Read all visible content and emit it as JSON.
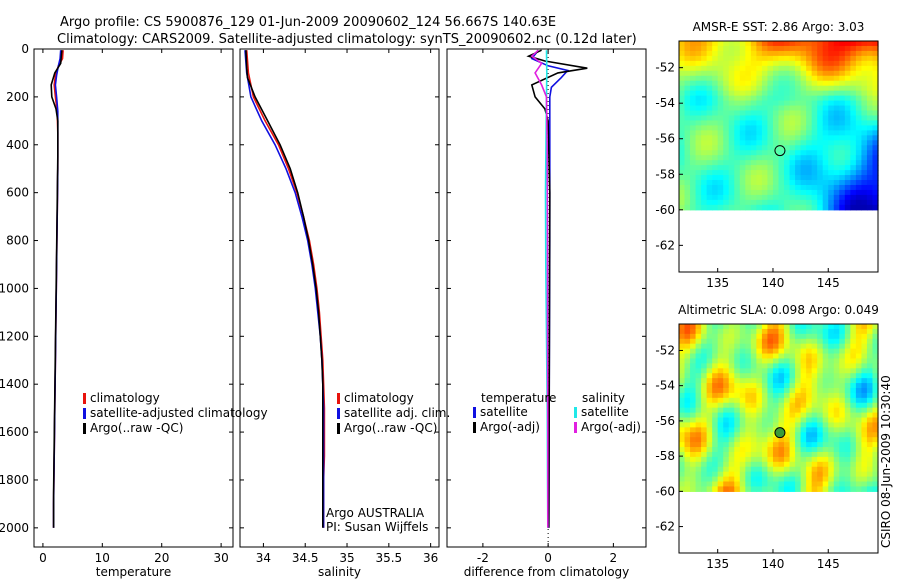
{
  "title_line1": "Argo profile: CS 5900876_129 01-Jun-2009 20090602_124 56.667S 140.63E",
  "title_line2": "Climatology: CARS2009. Satellite-adjusted climatology: synTS_20090602.nc (0.12d later)",
  "footer_stamp": "CSIRO 08-Jun-2009 10:30:40",
  "colors": {
    "climatology": "#e8120c",
    "satellite": "#1010e0",
    "argo": "#000000",
    "sat_salinity": "#20e8e8",
    "argo_adj_salinity": "#e020e0"
  },
  "chart_data": [
    {
      "type": "line",
      "name": "temperature-panel",
      "xlabel": "temperature",
      "xlim": [
        -1.5,
        32
      ],
      "xticks": [
        0,
        10,
        20,
        30
      ],
      "ylim": [
        2080,
        0
      ],
      "yticks": [
        0,
        200,
        400,
        600,
        800,
        1000,
        1200,
        1400,
        1600,
        1800,
        2000
      ],
      "legend": [
        "climatology",
        "satellite-adjusted climatology",
        "Argo(..raw -QC)"
      ],
      "series": [
        {
          "name": "climatology",
          "color_key": "climatology",
          "points": [
            [
              3.4,
              5
            ],
            [
              3.3,
              40
            ],
            [
              2.6,
              70
            ],
            [
              2.1,
              110
            ],
            [
              1.9,
              150
            ],
            [
              2.1,
              200
            ],
            [
              2.4,
              260
            ],
            [
              2.5,
              350
            ],
            [
              2.5,
              500
            ],
            [
              2.4,
              700
            ],
            [
              2.3,
              900
            ],
            [
              2.2,
              1100
            ],
            [
              2.1,
              1300
            ],
            [
              2.0,
              1500
            ],
            [
              1.9,
              1700
            ],
            [
              1.8,
              1900
            ],
            [
              1.8,
              2000
            ]
          ]
        },
        {
          "name": "satellite-adjusted climatology",
          "color_key": "satellite",
          "points": [
            [
              3.0,
              5
            ],
            [
              2.9,
              40
            ],
            [
              2.6,
              70
            ],
            [
              2.3,
              110
            ],
            [
              2.1,
              150
            ],
            [
              2.3,
              200
            ],
            [
              2.5,
              260
            ],
            [
              2.5,
              350
            ],
            [
              2.5,
              500
            ],
            [
              2.4,
              700
            ],
            [
              2.3,
              900
            ],
            [
              2.2,
              1100
            ],
            [
              2.1,
              1300
            ],
            [
              2.0,
              1500
            ],
            [
              1.9,
              1700
            ],
            [
              1.8,
              1900
            ],
            [
              1.8,
              2000
            ]
          ]
        },
        {
          "name": "Argo(..raw -QC)",
          "color_key": "argo",
          "points": [
            [
              3.2,
              5
            ],
            [
              3.1,
              30
            ],
            [
              3.0,
              60
            ],
            [
              2.0,
              100
            ],
            [
              1.4,
              150
            ],
            [
              1.5,
              200
            ],
            [
              2.2,
              250
            ],
            [
              2.5,
              300
            ],
            [
              2.5,
              450
            ],
            [
              2.4,
              650
            ],
            [
              2.3,
              850
            ],
            [
              2.2,
              1050
            ],
            [
              2.1,
              1250
            ],
            [
              2.0,
              1450
            ],
            [
              1.9,
              1650
            ],
            [
              1.8,
              1850
            ],
            [
              1.8,
              2000
            ]
          ]
        }
      ]
    },
    {
      "type": "line",
      "name": "salinity-panel",
      "xlabel": "salinity",
      "xlim": [
        33.72,
        36.1
      ],
      "xticks": [
        34,
        34.5,
        35,
        35.5,
        36
      ],
      "ylim": [
        2080,
        0
      ],
      "legend": [
        "climatology",
        "satellite adj. clim.",
        "Argo(..raw -QC)"
      ],
      "annotation_line1": "Argo AUSTRALIA",
      "annotation_line2": "PI: Susan Wijffels",
      "series": [
        {
          "name": "climatology",
          "color_key": "climatology",
          "points": [
            [
              33.8,
              5
            ],
            [
              33.82,
              100
            ],
            [
              33.88,
              200
            ],
            [
              34.02,
              300
            ],
            [
              34.18,
              400
            ],
            [
              34.3,
              500
            ],
            [
              34.4,
              600
            ],
            [
              34.48,
              700
            ],
            [
              34.55,
              800
            ],
            [
              34.6,
              900
            ],
            [
              34.64,
              1000
            ],
            [
              34.67,
              1100
            ],
            [
              34.69,
              1200
            ],
            [
              34.71,
              1300
            ],
            [
              34.72,
              1400
            ],
            [
              34.73,
              1500
            ],
            [
              34.73,
              1600
            ],
            [
              34.73,
              1700
            ],
            [
              34.72,
              1800
            ],
            [
              34.72,
              1900
            ],
            [
              34.72,
              2000
            ]
          ]
        },
        {
          "name": "satellite adj. clim.",
          "color_key": "satellite",
          "points": [
            [
              33.78,
              5
            ],
            [
              33.8,
              100
            ],
            [
              33.85,
              200
            ],
            [
              33.98,
              300
            ],
            [
              34.14,
              400
            ],
            [
              34.27,
              500
            ],
            [
              34.38,
              600
            ],
            [
              34.46,
              700
            ],
            [
              34.53,
              800
            ],
            [
              34.58,
              900
            ],
            [
              34.62,
              1000
            ],
            [
              34.65,
              1100
            ],
            [
              34.68,
              1200
            ],
            [
              34.7,
              1300
            ],
            [
              34.71,
              1400
            ],
            [
              34.72,
              1500
            ],
            [
              34.72,
              1600
            ],
            [
              34.72,
              1700
            ],
            [
              34.72,
              1800
            ],
            [
              34.72,
              1900
            ],
            [
              34.72,
              2000
            ]
          ]
        },
        {
          "name": "Argo(..raw -QC)",
          "color_key": "argo",
          "points": [
            [
              33.79,
              5
            ],
            [
              33.8,
              80
            ],
            [
              33.81,
              120
            ],
            [
              33.9,
              200
            ],
            [
              34.05,
              300
            ],
            [
              34.2,
              400
            ],
            [
              34.32,
              500
            ],
            [
              34.41,
              600
            ],
            [
              34.48,
              700
            ],
            [
              34.54,
              800
            ],
            [
              34.59,
              900
            ],
            [
              34.63,
              1000
            ],
            [
              34.66,
              1100
            ],
            [
              34.68,
              1200
            ],
            [
              34.7,
              1300
            ],
            [
              34.71,
              1400
            ],
            [
              34.71,
              1500
            ],
            [
              34.71,
              1600
            ],
            [
              34.71,
              1700
            ],
            [
              34.71,
              1800
            ],
            [
              34.71,
              1900
            ],
            [
              34.71,
              2000
            ]
          ]
        }
      ]
    },
    {
      "type": "line",
      "name": "difference-panel",
      "xlabel": "difference from climatology",
      "xlim": [
        -3.1,
        3.0
      ],
      "xticks": [
        -2,
        0,
        2
      ],
      "ylim": [
        2080,
        0
      ],
      "legend_header_left": "temperature",
      "legend_header_right": "salinity",
      "legend_left": [
        "satellite",
        "Argo(-adj)"
      ],
      "legend_right": [
        "satellite",
        "Argo(-adj)"
      ],
      "series": [
        {
          "name": "temperature satellite",
          "color_key": "satellite",
          "points": [
            [
              -0.3,
              5
            ],
            [
              -0.5,
              40
            ],
            [
              0,
              70
            ],
            [
              0.6,
              90
            ],
            [
              0.4,
              120
            ],
            [
              0.1,
              160
            ],
            [
              0.05,
              200
            ],
            [
              0.05,
              400
            ],
            [
              0.05,
              800
            ],
            [
              0.04,
              1200
            ],
            [
              0.03,
              1600
            ],
            [
              0.02,
              2000
            ]
          ]
        },
        {
          "name": "temperature Argo(-adj)",
          "color_key": "argo",
          "points": [
            [
              -0.2,
              5
            ],
            [
              -0.6,
              30
            ],
            [
              -0.1,
              50
            ],
            [
              1.2,
              80
            ],
            [
              0.3,
              100
            ],
            [
              -0.5,
              150
            ],
            [
              -0.4,
              200
            ],
            [
              -0.1,
              250
            ],
            [
              0,
              300
            ],
            [
              0.05,
              600
            ],
            [
              0.04,
              1200
            ],
            [
              0.03,
              1600
            ],
            [
              0.02,
              2000
            ]
          ]
        },
        {
          "name": "salinity satellite",
          "color_key": "sat_salinity",
          "points": [
            [
              -0.05,
              5
            ],
            [
              -0.04,
              100
            ],
            [
              -0.06,
              300
            ],
            [
              -0.08,
              600
            ],
            [
              -0.07,
              900
            ],
            [
              -0.05,
              1200
            ],
            [
              -0.03,
              1500
            ],
            [
              -0.02,
              1800
            ],
            [
              -0.01,
              2000
            ]
          ]
        },
        {
          "name": "salinity Argo(-adj)",
          "color_key": "argo_adj_salinity",
          "points": [
            [
              -0.3,
              5
            ],
            [
              -0.5,
              30
            ],
            [
              -0.2,
              60
            ],
            [
              -0.4,
              100
            ],
            [
              -0.2,
              150
            ],
            [
              -0.05,
              200
            ],
            [
              -0.03,
              400
            ],
            [
              -0.02,
              800
            ],
            [
              -0.02,
              1200
            ],
            [
              -0.01,
              1600
            ],
            [
              -0.01,
              2000
            ]
          ]
        }
      ]
    },
    {
      "type": "heatmap",
      "name": "sst-map",
      "title": "AMSR-E SST: 2.86 Argo: 3.03",
      "xlim": [
        131.5,
        149.5
      ],
      "ylim": [
        -63.5,
        -50.5
      ],
      "xticks": [
        135,
        140,
        145
      ],
      "yticks": [
        -52,
        -54,
        -56,
        -58,
        -60,
        -62
      ],
      "data_ylim": [
        -60,
        -50.5
      ],
      "float_position": [
        140.63,
        -56.667
      ]
    },
    {
      "type": "heatmap",
      "name": "sla-map",
      "title": "Altimetric SLA: 0.098 Argo: 0.049",
      "xlim": [
        131.5,
        149.5
      ],
      "ylim": [
        -63.5,
        -50.5
      ],
      "xticks": [
        135,
        140,
        145
      ],
      "yticks": [
        -52,
        -54,
        -56,
        -58,
        -60,
        -62
      ],
      "data_ylim": [
        -60,
        -50.5
      ],
      "float_position": [
        140.63,
        -56.667
      ]
    }
  ]
}
